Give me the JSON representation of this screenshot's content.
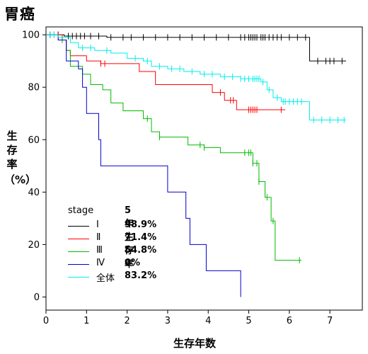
{
  "page": {
    "title": "胃癌"
  },
  "chart_data": {
    "type": "line",
    "subtype": "kaplan-meier step curves with censor marks",
    "title": "胃癌",
    "xlabel": "生存年数",
    "ylabel_chars": [
      "生",
      "存",
      "率",
      "（%）"
    ],
    "xlim": [
      0,
      7.8
    ],
    "ylim": [
      -5,
      103
    ],
    "xticks": [
      0,
      1,
      2,
      3,
      4,
      5,
      6,
      7
    ],
    "yticks": [
      0,
      20,
      40,
      60,
      80,
      100
    ],
    "grid": false,
    "legend": {
      "placement": "lower-left",
      "title": "stage",
      "rate_title": "5年生存率"
    },
    "series": [
      {
        "name": "Ⅰ",
        "rate": "98.9%",
        "color": "#000000",
        "steps": [
          [
            0,
            100
          ],
          [
            0.45,
            100
          ],
          [
            0.45,
            99.5
          ],
          [
            1.5,
            99.5
          ],
          [
            1.5,
            99
          ],
          [
            6.5,
            99
          ],
          [
            6.5,
            90
          ],
          [
            7.4,
            90
          ]
        ],
        "censor": [
          0.1,
          0.2,
          0.3,
          0.55,
          0.65,
          0.75,
          0.85,
          0.95,
          1.1,
          1.3,
          1.6,
          1.9,
          2.1,
          2.4,
          2.7,
          3.0,
          3.3,
          3.6,
          3.9,
          4.2,
          4.5,
          4.8,
          4.9,
          5.0,
          5.05,
          5.1,
          5.15,
          5.2,
          5.3,
          5.35,
          5.4,
          5.5,
          5.6,
          5.7,
          5.8,
          6.0,
          6.2,
          6.4,
          6.7,
          6.9,
          7.0,
          7.1,
          7.3
        ]
      },
      {
        "name": "Ⅱ",
        "rate": "71.4%",
        "color": "#ff0000",
        "steps": [
          [
            0,
            100
          ],
          [
            0.4,
            100
          ],
          [
            0.4,
            98
          ],
          [
            0.5,
            98
          ],
          [
            0.5,
            94
          ],
          [
            0.6,
            94
          ],
          [
            0.6,
            92
          ],
          [
            1.0,
            92
          ],
          [
            1.0,
            90
          ],
          [
            1.35,
            90
          ],
          [
            1.35,
            89
          ],
          [
            2.3,
            89
          ],
          [
            2.3,
            86
          ],
          [
            2.7,
            86
          ],
          [
            2.7,
            81
          ],
          [
            4.1,
            81
          ],
          [
            4.1,
            78
          ],
          [
            4.4,
            78
          ],
          [
            4.4,
            75
          ],
          [
            4.7,
            75
          ],
          [
            4.7,
            71.4
          ],
          [
            5.9,
            71.4
          ]
        ],
        "censor": [
          0.2,
          0.3,
          1.35,
          1.45,
          4.3,
          4.55,
          4.62,
          5.0,
          5.05,
          5.1,
          5.15,
          5.2,
          5.8
        ]
      },
      {
        "name": "Ⅲ",
        "rate": "54.8%",
        "color": "#00bb00",
        "steps": [
          [
            0,
            100
          ],
          [
            0.3,
            100
          ],
          [
            0.3,
            98
          ],
          [
            0.5,
            98
          ],
          [
            0.5,
            94
          ],
          [
            0.6,
            94
          ],
          [
            0.6,
            88
          ],
          [
            0.9,
            88
          ],
          [
            0.9,
            85
          ],
          [
            1.1,
            85
          ],
          [
            1.1,
            81
          ],
          [
            1.4,
            81
          ],
          [
            1.4,
            79
          ],
          [
            1.6,
            79
          ],
          [
            1.6,
            74
          ],
          [
            1.9,
            74
          ],
          [
            1.9,
            71
          ],
          [
            2.4,
            71
          ],
          [
            2.4,
            68
          ],
          [
            2.6,
            68
          ],
          [
            2.6,
            63
          ],
          [
            2.8,
            63
          ],
          [
            2.8,
            61
          ],
          [
            3.5,
            61
          ],
          [
            3.5,
            58
          ],
          [
            3.9,
            58
          ],
          [
            3.9,
            57
          ],
          [
            4.3,
            57
          ],
          [
            4.3,
            55
          ],
          [
            5.1,
            55
          ],
          [
            5.1,
            51
          ],
          [
            5.25,
            51
          ],
          [
            5.25,
            44
          ],
          [
            5.4,
            44
          ],
          [
            5.4,
            38
          ],
          [
            5.55,
            38
          ],
          [
            5.55,
            29
          ],
          [
            5.65,
            29
          ],
          [
            5.65,
            14
          ],
          [
            6.3,
            14
          ]
        ],
        "censor": [
          0.4,
          2.5,
          2.8,
          3.8,
          3.9,
          4.9,
          5.0,
          5.05,
          5.1,
          5.2,
          5.25,
          5.45,
          5.6,
          6.25
        ]
      },
      {
        "name": "Ⅳ",
        "rate": "0%",
        "color": "#0000cc",
        "steps": [
          [
            0,
            100
          ],
          [
            0.3,
            100
          ],
          [
            0.3,
            98
          ],
          [
            0.5,
            98
          ],
          [
            0.5,
            90
          ],
          [
            0.8,
            90
          ],
          [
            0.8,
            87
          ],
          [
            0.9,
            87
          ],
          [
            0.9,
            80
          ],
          [
            1.0,
            80
          ],
          [
            1.0,
            70
          ],
          [
            1.3,
            70
          ],
          [
            1.3,
            60
          ],
          [
            1.35,
            60
          ],
          [
            1.35,
            50
          ],
          [
            3.0,
            50
          ],
          [
            3.0,
            40
          ],
          [
            3.45,
            40
          ],
          [
            3.45,
            30
          ],
          [
            3.55,
            30
          ],
          [
            3.55,
            20
          ],
          [
            3.95,
            20
          ],
          [
            3.95,
            10
          ],
          [
            4.8,
            10
          ],
          [
            4.8,
            0
          ]
        ],
        "censor": []
      },
      {
        "name": "全体",
        "rate": "83.2%",
        "color": "#00eeee",
        "steps": [
          [
            0,
            100
          ],
          [
            0.3,
            100
          ],
          [
            0.3,
            99
          ],
          [
            0.6,
            99
          ],
          [
            0.6,
            97
          ],
          [
            0.8,
            97
          ],
          [
            0.8,
            95
          ],
          [
            1.2,
            95
          ],
          [
            1.2,
            94
          ],
          [
            1.6,
            94
          ],
          [
            1.6,
            93
          ],
          [
            2.0,
            93
          ],
          [
            2.0,
            91
          ],
          [
            2.4,
            91
          ],
          [
            2.4,
            90
          ],
          [
            2.6,
            90
          ],
          [
            2.6,
            88
          ],
          [
            3.0,
            88
          ],
          [
            3.0,
            87
          ],
          [
            3.4,
            87
          ],
          [
            3.4,
            86
          ],
          [
            3.8,
            86
          ],
          [
            3.8,
            85
          ],
          [
            4.3,
            85
          ],
          [
            4.3,
            84
          ],
          [
            4.8,
            84
          ],
          [
            4.8,
            83.2
          ],
          [
            5.3,
            83.2
          ],
          [
            5.3,
            82
          ],
          [
            5.45,
            82
          ],
          [
            5.45,
            79
          ],
          [
            5.6,
            79
          ],
          [
            5.6,
            76
          ],
          [
            5.8,
            76
          ],
          [
            5.8,
            74.5
          ],
          [
            6.5,
            74.5
          ],
          [
            6.5,
            67.5
          ],
          [
            7.4,
            67.5
          ]
        ],
        "censor": [
          0.1,
          0.2,
          0.9,
          1.1,
          1.5,
          2.2,
          2.5,
          2.8,
          3.1,
          3.3,
          3.6,
          3.9,
          4.1,
          4.4,
          4.6,
          4.8,
          4.9,
          5.0,
          5.1,
          5.15,
          5.2,
          5.25,
          5.35,
          5.5,
          5.7,
          5.85,
          5.9,
          6.0,
          6.1,
          6.2,
          6.3,
          6.6,
          6.8,
          7.0,
          7.2,
          7.35
        ]
      }
    ]
  }
}
